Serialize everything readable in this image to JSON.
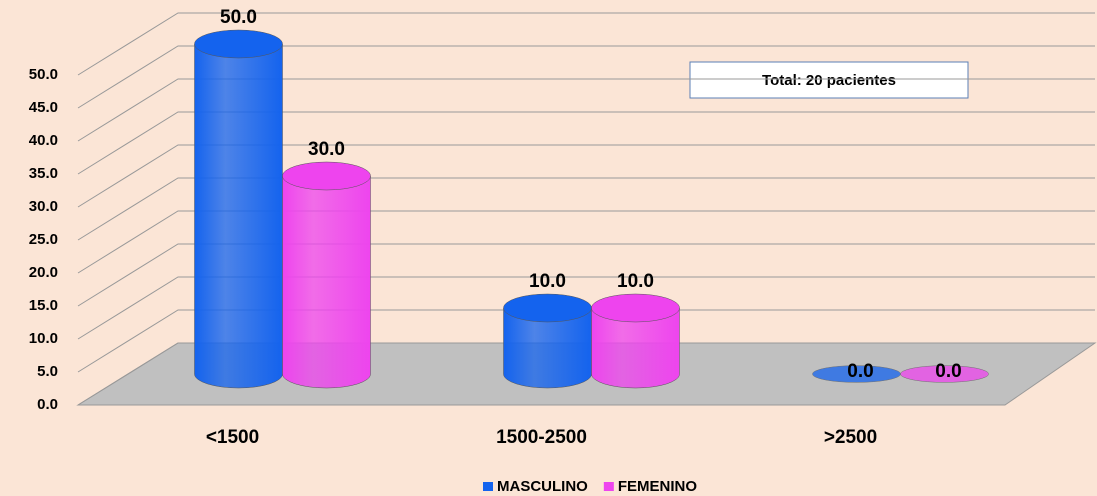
{
  "chart_data": {
    "type": "bar3d",
    "annotation": "Total: 20 pacientes",
    "categories": [
      "<1500",
      "1500-2500",
      ">2500"
    ],
    "series": [
      {
        "name": "MASCULINO",
        "color": "#1463ee",
        "values": [
          50,
          10,
          0
        ],
        "value_labels": [
          "50.0",
          "10.0",
          "0.0"
        ]
      },
      {
        "name": "FEMENINO",
        "color": "#ee44ee",
        "values": [
          30,
          10,
          0
        ],
        "value_labels": [
          "30.0",
          "10.0",
          "0.0"
        ]
      }
    ],
    "ylim": [
      0,
      50
    ],
    "yticks": [
      {
        "value": 0,
        "label": "0.0"
      },
      {
        "value": 5,
        "label": "5.0"
      },
      {
        "value": 10,
        "label": "10.0"
      },
      {
        "value": 15,
        "label": "15.0"
      },
      {
        "value": 20,
        "label": "20.0"
      },
      {
        "value": 25,
        "label": "25.0"
      },
      {
        "value": 30,
        "label": "30.0"
      },
      {
        "value": 35,
        "label": "35.0"
      },
      {
        "value": 40,
        "label": "40.0"
      },
      {
        "value": 45,
        "label": "45.0"
      },
      {
        "value": 50,
        "label": "50.0"
      }
    ],
    "grid": true,
    "legend": "bottom"
  }
}
